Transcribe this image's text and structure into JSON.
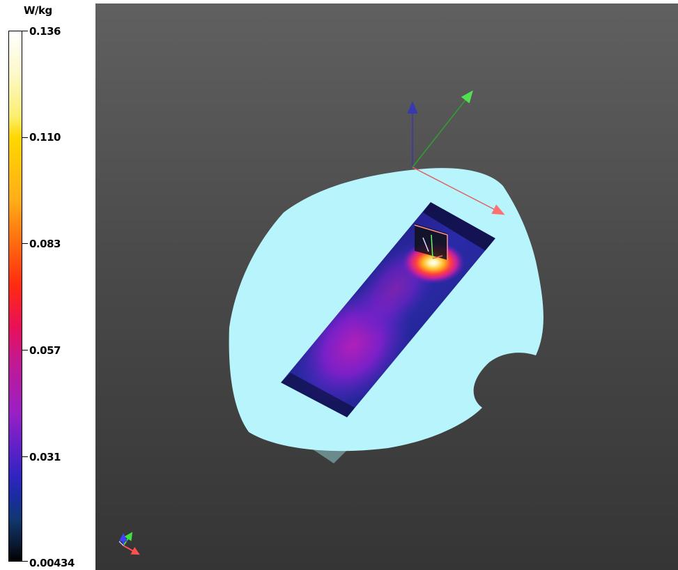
{
  "legend": {
    "unit": "W/kg",
    "ticks": [
      {
        "label": "0.136"
      },
      {
        "label": "0.110"
      },
      {
        "label": "0.083"
      },
      {
        "label": "0.057"
      },
      {
        "label": "0.031"
      },
      {
        "label": "0.00434"
      }
    ]
  },
  "colors": {
    "phantom_surface": "#b8f4fc",
    "background_top": "#606060",
    "background_bottom": "#353535",
    "axis_x": "#ff6060",
    "axis_y": "#40d040",
    "axis_z": "#4040c0"
  },
  "icons": {
    "main_axes": "xyz-axes-icon",
    "orientation_axes": "orientation-axes-icon"
  }
}
